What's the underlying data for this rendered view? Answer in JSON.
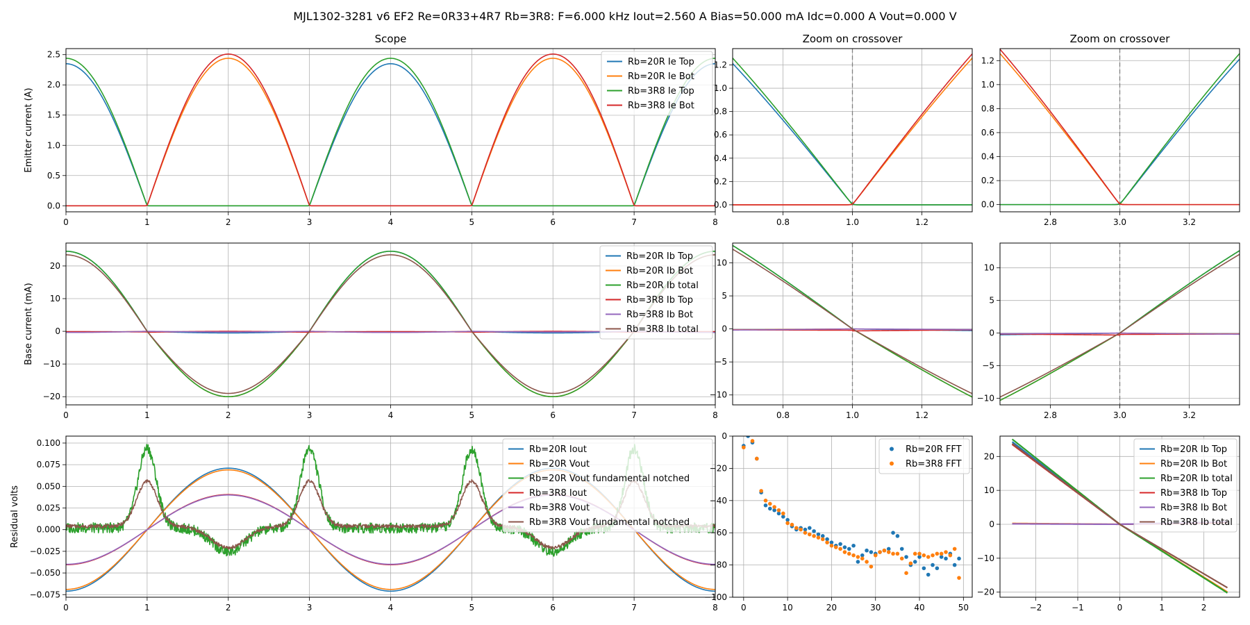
{
  "figure": {
    "title": "MJL1302-3281 v6 EF2 Re=0R33+4R7 Rb=3R8: F=6.000 kHz Iout=2.560 A Bias=50.000 mA Idc=0.000 A Vout=0.000 V"
  },
  "colors": {
    "blue": "#1f77b4",
    "orange": "#ff7f0e",
    "green": "#2ca02c",
    "red": "#d62728",
    "purple": "#9467bd",
    "brown": "#8c564b",
    "grid": "#b0b0b0",
    "crossover_line": "#808080"
  },
  "chart_data": [
    {
      "id": "scope_emitter",
      "type": "line",
      "title": "Scope",
      "xlabel": "",
      "ylabel": "Emitter current (A)",
      "xlim": [
        0,
        8
      ],
      "ylim": [
        -0.1,
        2.6
      ],
      "xticks": [
        0,
        1,
        2,
        3,
        4,
        5,
        6,
        7,
        8
      ],
      "yticks": [
        0.0,
        0.5,
        1.0,
        1.5,
        2.0,
        2.5
      ],
      "xtick_labels": [
        "0",
        "1",
        "2",
        "3",
        "4",
        "5",
        "6",
        "7",
        "8"
      ],
      "ytick_labels": [
        "0.0",
        "0.5",
        "1.0",
        "1.5",
        "2.0",
        "2.5"
      ],
      "grid": true,
      "legend": "top-right",
      "series": [
        {
          "name": "Rb=20R Ie Top",
          "color": "#1f77b4",
          "peak": 2.35,
          "phase": "top"
        },
        {
          "name": "Rb=20R Ie Bot",
          "color": "#ff7f0e",
          "peak": 2.44,
          "phase": "bot"
        },
        {
          "name": "Rb=3R8 Ie Top",
          "color": "#2ca02c",
          "peak": 2.44,
          "phase": "top"
        },
        {
          "name": "Rb=3R8 Ie Bot",
          "color": "#d62728",
          "peak": 2.51,
          "phase": "bot"
        }
      ]
    },
    {
      "id": "zoom_emitter_1",
      "type": "line",
      "title": "Zoom on crossover",
      "xlabel": "",
      "ylabel": "",
      "xlim": [
        0.655,
        1.345
      ],
      "ylim": [
        -0.06,
        1.34
      ],
      "xticks": [
        0.8,
        1.0,
        1.2
      ],
      "yticks": [
        0.0,
        0.2,
        0.4,
        0.6,
        0.8,
        1.0,
        1.2
      ],
      "xtick_labels": [
        "0.8",
        "1.0",
        "1.2"
      ],
      "ytick_labels": [
        "0.0",
        "0.2",
        "0.4",
        "0.6",
        "0.8",
        "1.0",
        "1.2"
      ],
      "grid": true,
      "vline": 1.0,
      "series": [
        {
          "name": "Rb=20R Ie Top",
          "color": "#1f77b4"
        },
        {
          "name": "Rb=20R Ie Bot",
          "color": "#ff7f0e"
        },
        {
          "name": "Rb=3R8 Ie Top",
          "color": "#2ca02c"
        },
        {
          "name": "Rb=3R8 Ie Bot",
          "color": "#d62728"
        }
      ]
    },
    {
      "id": "zoom_emitter_3",
      "type": "line",
      "title": "Zoom on crossover",
      "xlabel": "",
      "ylabel": "",
      "xlim": [
        2.655,
        3.345
      ],
      "ylim": [
        -0.06,
        1.3
      ],
      "xticks": [
        2.8,
        3.0,
        3.2
      ],
      "yticks": [
        0.0,
        0.2,
        0.4,
        0.6,
        0.8,
        1.0,
        1.2
      ],
      "xtick_labels": [
        "2.8",
        "3.0",
        "3.2"
      ],
      "ytick_labels": [
        "0.0",
        "0.2",
        "0.4",
        "0.6",
        "0.8",
        "1.0",
        "1.2"
      ],
      "grid": true,
      "vline": 3.0,
      "series": [
        {
          "name": "Rb=20R Ie Top",
          "color": "#1f77b4"
        },
        {
          "name": "Rb=20R Ie Bot",
          "color": "#ff7f0e"
        },
        {
          "name": "Rb=3R8 Ie Top",
          "color": "#2ca02c"
        },
        {
          "name": "Rb=3R8 Ie Bot",
          "color": "#d62728"
        }
      ]
    },
    {
      "id": "scope_base",
      "type": "line",
      "title": "",
      "xlabel": "",
      "ylabel": "Base current (mA)",
      "xlim": [
        0,
        8
      ],
      "ylim": [
        -22.5,
        27
      ],
      "xticks": [
        0,
        1,
        2,
        3,
        4,
        5,
        6,
        7,
        8
      ],
      "yticks": [
        -20,
        -10,
        0,
        10,
        20
      ],
      "xtick_labels": [
        "0",
        "1",
        "2",
        "3",
        "4",
        "5",
        "6",
        "7",
        "8"
      ],
      "ytick_labels": [
        "−20",
        "−10",
        "0",
        "10",
        "20"
      ],
      "grid": true,
      "legend": "top-right",
      "series": [
        {
          "name": "Rb=20R Ib Top",
          "color": "#1f77b4"
        },
        {
          "name": "Rb=20R Ib Bot",
          "color": "#ff7f0e"
        },
        {
          "name": "Rb=20R Ib total",
          "color": "#2ca02c"
        },
        {
          "name": "Rb=3R8 Ib Top",
          "color": "#d62728"
        },
        {
          "name": "Rb=3R8 Ib Bot",
          "color": "#9467bd"
        },
        {
          "name": "Rb=3R8 Ib total",
          "color": "#8c564b"
        }
      ]
    },
    {
      "id": "zoom_base_1",
      "type": "line",
      "title": "",
      "xlabel": "",
      "ylabel": "",
      "xlim": [
        0.655,
        1.345
      ],
      "ylim": [
        -11.5,
        13
      ],
      "xticks": [
        0.8,
        1.0,
        1.2
      ],
      "yticks": [
        -10,
        -5,
        0,
        5,
        10
      ],
      "xtick_labels": [
        "0.8",
        "1.0",
        "1.2"
      ],
      "ytick_labels": [
        "−10",
        "−5",
        "0",
        "5",
        "10"
      ],
      "grid": true,
      "vline": 1.0,
      "series": [
        {
          "name": "Rb=20R Ib Top",
          "color": "#1f77b4"
        },
        {
          "name": "Rb=20R Ib Bot",
          "color": "#ff7f0e"
        },
        {
          "name": "Rb=20R Ib total",
          "color": "#2ca02c"
        },
        {
          "name": "Rb=3R8 Ib Top",
          "color": "#d62728"
        },
        {
          "name": "Rb=3R8 Ib Bot",
          "color": "#9467bd"
        },
        {
          "name": "Rb=3R8 Ib total",
          "color": "#8c564b"
        }
      ]
    },
    {
      "id": "zoom_base_3",
      "type": "line",
      "title": "",
      "xlabel": "",
      "ylabel": "",
      "xlim": [
        2.655,
        3.345
      ],
      "ylim": [
        -11,
        13.8
      ],
      "xticks": [
        2.8,
        3.0,
        3.2
      ],
      "yticks": [
        -10,
        -5,
        0,
        5,
        10
      ],
      "xtick_labels": [
        "2.8",
        "3.0",
        "3.2"
      ],
      "ytick_labels": [
        "−10",
        "−5",
        "0",
        "5",
        "10"
      ],
      "grid": true,
      "vline": 3.0,
      "series": [
        {
          "name": "Rb=20R Ib Top",
          "color": "#1f77b4"
        },
        {
          "name": "Rb=20R Ib Bot",
          "color": "#ff7f0e"
        },
        {
          "name": "Rb=20R Ib total",
          "color": "#2ca02c"
        },
        {
          "name": "Rb=3R8 Ib Top",
          "color": "#d62728"
        },
        {
          "name": "Rb=3R8 Ib Bot",
          "color": "#9467bd"
        },
        {
          "name": "Rb=3R8 Ib total",
          "color": "#8c564b"
        }
      ]
    },
    {
      "id": "scope_residual",
      "type": "line",
      "title": "",
      "xlabel": "",
      "ylabel": "Residual volts",
      "xlim": [
        0,
        8
      ],
      "ylim": [
        -0.078,
        0.108
      ],
      "xticks": [
        0,
        1,
        2,
        3,
        4,
        5,
        6,
        7,
        8
      ],
      "yticks": [
        -0.075,
        -0.05,
        -0.025,
        0.0,
        0.025,
        0.05,
        0.075,
        0.1
      ],
      "xtick_labels": [
        "0",
        "1",
        "2",
        "3",
        "4",
        "5",
        "6",
        "7",
        "8"
      ],
      "ytick_labels": [
        "−0.075",
        "−0.050",
        "−0.025",
        "0.000",
        "0.025",
        "0.050",
        "0.075",
        "0.100"
      ],
      "grid": true,
      "legend": "top-right",
      "series": [
        {
          "name": "Rb=20R Iout",
          "color": "#1f77b4",
          "amplitude": 0.071
        },
        {
          "name": "Rb=20R Vout",
          "color": "#ff7f0e",
          "amplitude": 0.069
        },
        {
          "name": "Rb=20R Vout fundamental notched",
          "color": "#2ca02c"
        },
        {
          "name": "Rb=3R8 Iout",
          "color": "#d62728",
          "amplitude": 0.041
        },
        {
          "name": "Rb=3R8 Vout",
          "color": "#9467bd",
          "amplitude": 0.04
        },
        {
          "name": "Rb=3R8 Vout fundamental notched",
          "color": "#8c564b"
        }
      ]
    },
    {
      "id": "fft",
      "type": "scatter",
      "title": "",
      "xlabel": "",
      "ylabel": "",
      "xlim": [
        -2.5,
        52
      ],
      "ylim": [
        -100,
        0
      ],
      "xticks": [
        0,
        10,
        20,
        30,
        40,
        50
      ],
      "yticks": [
        -100,
        -80,
        -60,
        -40,
        -20,
        0
      ],
      "xtick_labels": [
        "0",
        "10",
        "20",
        "30",
        "40",
        "50"
      ],
      "ytick_labels": [
        "−100",
        "−80",
        "−60",
        "−40",
        "−20",
        "0"
      ],
      "grid": true,
      "legend": "top-right",
      "series": [
        {
          "name": "Rb=20R FFT",
          "color": "#1f77b4",
          "x": [
            0,
            1,
            2,
            3,
            4,
            5,
            6,
            7,
            8,
            9,
            10,
            11,
            12,
            13,
            14,
            15,
            16,
            17,
            18,
            19,
            20,
            21,
            22,
            23,
            24,
            25,
            26,
            27,
            28,
            29,
            30,
            31,
            32,
            33,
            34,
            35,
            36,
            37,
            38,
            39,
            40,
            41,
            42,
            43,
            44,
            45,
            46,
            47,
            48,
            49
          ],
          "y": [
            -6,
            0,
            -4,
            -14,
            -35,
            -43,
            -45,
            -46,
            -48,
            -50,
            -52,
            -56,
            -58,
            -57,
            -58,
            -57,
            -59,
            -61,
            -62,
            -64,
            -66,
            -68,
            -67,
            -69,
            -70,
            -68,
            -78,
            -74,
            -71,
            -72,
            -73,
            -72,
            -71,
            -70,
            -60,
            -62,
            -70,
            -75,
            -80,
            -78,
            -75,
            -82,
            -86,
            -80,
            -82,
            -75,
            -76,
            -73,
            -80,
            -76
          ]
        },
        {
          "name": "Rb=3R8 FFT",
          "color": "#ff7f0e",
          "x": [
            0,
            1,
            2,
            3,
            4,
            5,
            6,
            7,
            8,
            9,
            10,
            11,
            12,
            13,
            14,
            15,
            16,
            17,
            18,
            19,
            20,
            21,
            22,
            23,
            24,
            25,
            26,
            27,
            28,
            29,
            30,
            31,
            32,
            33,
            34,
            35,
            36,
            37,
            38,
            39,
            40,
            41,
            42,
            43,
            44,
            45,
            46,
            47,
            48,
            49
          ],
          "y": [
            -7,
            1,
            -3,
            -14,
            -34,
            -40,
            -42,
            -44,
            -46,
            -48,
            -54,
            -55,
            -57,
            -58,
            -60,
            -61,
            -62,
            -63,
            -64,
            -66,
            -68,
            -69,
            -70,
            -72,
            -73,
            -74,
            -75,
            -76,
            -78,
            -81,
            -74,
            -72,
            -71,
            -72,
            -73,
            -73,
            -76,
            -85,
            -79,
            -73,
            -73,
            -74,
            -75,
            -74,
            -73,
            -73,
            -72,
            -74,
            -70,
            -88
          ]
        }
      ]
    },
    {
      "id": "ib_vs_vout",
      "type": "line",
      "title": "",
      "xlabel": "",
      "ylabel": "",
      "xlim": [
        -2.85,
        2.85
      ],
      "ylim": [
        -21.5,
        26
      ],
      "xticks": [
        -2,
        -1,
        0,
        1,
        2
      ],
      "yticks": [
        -20,
        -10,
        0,
        10,
        20
      ],
      "xtick_labels": [
        "−2",
        "−1",
        "0",
        "1",
        "2"
      ],
      "ytick_labels": [
        "−20",
        "−10",
        "0",
        "10",
        "20"
      ],
      "grid": true,
      "legend": "top-right",
      "series": [
        {
          "name": "Rb=20R Ib Top",
          "color": "#1f77b4"
        },
        {
          "name": "Rb=20R Ib Bot",
          "color": "#ff7f0e"
        },
        {
          "name": "Rb=20R Ib total",
          "color": "#2ca02c"
        },
        {
          "name": "Rb=3R8 Ib Top",
          "color": "#d62728"
        },
        {
          "name": "Rb=3R8 Ib Bot",
          "color": "#9467bd"
        },
        {
          "name": "Rb=3R8 Ib total",
          "color": "#8c564b"
        }
      ]
    }
  ]
}
